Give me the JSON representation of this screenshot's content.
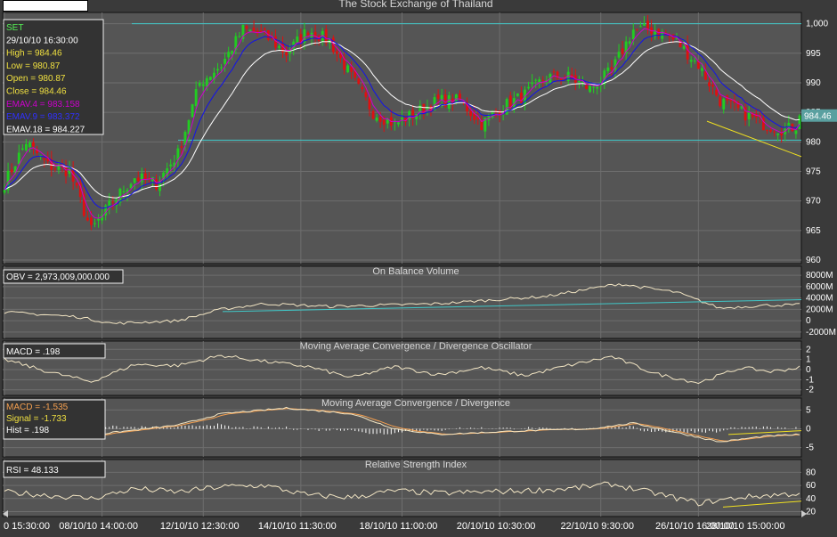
{
  "app": {
    "title": "The Stock Exchange of Thailand"
  },
  "colors": {
    "background": "#3a3a3a",
    "panel": "#555555",
    "grid": "#6e6e6e",
    "bull": "#22cc22",
    "bear": "#dd1111",
    "ema4": "#cc00cc",
    "ema9": "#1111ee",
    "ema18": "#ffffff",
    "trend": "#f0e020",
    "support": "#40c8c8",
    "indicator": "#f3e6c4",
    "signal": "#f5a050",
    "text_axis": "#ffffff",
    "text_title": "#d8d8d8"
  },
  "info_main": {
    "symbol": "SET",
    "datetime": "29/10/10 16:30:00",
    "high": "High  = 984.46",
    "low": "Low   = 980.87",
    "open": "Open  = 980.87",
    "close": "Close = 984.46",
    "ema4": "EMAV.4 = 983.158",
    "ema9": "EMAV.9 = 983.372",
    "ema18": "EMAV.18 = 984.227"
  },
  "info_obv": {
    "label": "OBV = 2,973,009,000.000"
  },
  "info_macd_osc": {
    "label": "MACD = .198"
  },
  "info_macd": {
    "macd": "MACD = -1.535",
    "signal": "Signal = -1.733",
    "hist": "Hist = .198"
  },
  "info_rsi": {
    "label": "RSI = 48.133"
  },
  "price_tag": "984.46",
  "x_labels": [
    "0 15:30:00",
    "08/10/10 14:00:00",
    "12/10/10 12:30:00",
    "14/10/10 11:30:00",
    "18/10/10 11:00:00",
    "20/10/10 10:30:00",
    "22/10/10 9:30:00",
    "26/10/10 16:00:00",
    "28/10/10 15:00:00"
  ],
  "chart_data": [
    {
      "type": "candlestick",
      "title": "The Stock Exchange of Thailand",
      "y_ticks": [
        "1,000",
        "995",
        "990",
        "985",
        "980",
        "975",
        "970",
        "965",
        "960"
      ],
      "ylim": [
        960,
        1001
      ],
      "series": [
        {
          "name": "EMAV.4",
          "last": 983.158
        },
        {
          "name": "EMAV.9",
          "last": 983.372
        },
        {
          "name": "EMAV.18",
          "last": 984.227
        }
      ],
      "anchors": [
        [
          0,
          973
        ],
        [
          6,
          980
        ],
        [
          12,
          976
        ],
        [
          18,
          975
        ],
        [
          24,
          965
        ],
        [
          30,
          970
        ],
        [
          36,
          974
        ],
        [
          42,
          973
        ],
        [
          48,
          978
        ],
        [
          54,
          990
        ],
        [
          60,
          993
        ],
        [
          66,
          999
        ],
        [
          72,
          998
        ],
        [
          78,
          995
        ],
        [
          84,
          999
        ],
        [
          90,
          997
        ],
        [
          96,
          991
        ],
        [
          102,
          985
        ],
        [
          108,
          983
        ],
        [
          114,
          985
        ],
        [
          120,
          987
        ],
        [
          126,
          987
        ],
        [
          132,
          983
        ],
        [
          138,
          986
        ],
        [
          144,
          988
        ],
        [
          150,
          991
        ],
        [
          156,
          991
        ],
        [
          162,
          989
        ],
        [
          168,
          992
        ],
        [
          174,
          999
        ],
        [
          180,
          999
        ],
        [
          186,
          997
        ],
        [
          192,
          993
        ],
        [
          198,
          987
        ],
        [
          204,
          985
        ],
        [
          210,
          983
        ],
        [
          216,
          982
        ],
        [
          220,
          983
        ]
      ],
      "last_close": 984.46,
      "grid": true
    },
    {
      "type": "line",
      "title": "On Balance Volume",
      "y_ticks": [
        "8000M",
        "6000M",
        "4000M",
        "2000M",
        "0",
        "-2000M"
      ],
      "ylim": [
        -2500,
        8500
      ],
      "anchors": [
        [
          0,
          1500
        ],
        [
          20,
          700
        ],
        [
          30,
          -500
        ],
        [
          48,
          0
        ],
        [
          60,
          2000
        ],
        [
          72,
          3000
        ],
        [
          90,
          2500
        ],
        [
          120,
          3000
        ],
        [
          150,
          4300
        ],
        [
          170,
          6500
        ],
        [
          186,
          5000
        ],
        [
          198,
          2200
        ],
        [
          210,
          2700
        ],
        [
          220,
          2800
        ]
      ],
      "last": 2973.009
    },
    {
      "type": "line",
      "title": "Moving Average Convergence / Divergence Oscillator",
      "y_ticks": [
        "2",
        "1",
        "0",
        "-1",
        "-2"
      ],
      "ylim": [
        -2.2,
        2.2
      ],
      "anchors": [
        [
          0,
          1
        ],
        [
          6,
          0.4
        ],
        [
          12,
          -0.2
        ],
        [
          24,
          -1.2
        ],
        [
          36,
          0.5
        ],
        [
          48,
          0.4
        ],
        [
          60,
          1.4
        ],
        [
          72,
          0.8
        ],
        [
          84,
          0.3
        ],
        [
          96,
          -0.8
        ],
        [
          108,
          0.3
        ],
        [
          120,
          -0.5
        ],
        [
          132,
          0.2
        ],
        [
          144,
          -0.6
        ],
        [
          156,
          0.4
        ],
        [
          168,
          1.3
        ],
        [
          180,
          -0.4
        ],
        [
          192,
          -1.3
        ],
        [
          204,
          0.2
        ],
        [
          212,
          -0.2
        ],
        [
          220,
          0.2
        ]
      ],
      "last": 0.198
    },
    {
      "type": "line",
      "title": "Moving Average Convergence / Divergence",
      "y_ticks": [
        "5",
        "0",
        "-5"
      ],
      "ylim": [
        -6.5,
        6.5
      ],
      "series": [
        {
          "name": "MACD",
          "last": -1.535
        },
        {
          "name": "Signal",
          "last": -1.733
        },
        {
          "name": "Hist",
          "last": 0.198
        }
      ],
      "anchors": [
        [
          0,
          -1
        ],
        [
          18,
          -2.5
        ],
        [
          30,
          -1
        ],
        [
          48,
          1
        ],
        [
          60,
          4
        ],
        [
          78,
          5.5
        ],
        [
          96,
          4
        ],
        [
          108,
          0
        ],
        [
          120,
          -1.5
        ],
        [
          144,
          -0.5
        ],
        [
          162,
          0
        ],
        [
          174,
          1.5
        ],
        [
          186,
          -1
        ],
        [
          198,
          -3.5
        ],
        [
          210,
          -2
        ],
        [
          220,
          -1.5
        ]
      ]
    },
    {
      "type": "line",
      "title": "Relative Strength Index",
      "y_ticks": [
        "80",
        "60",
        "40",
        "20"
      ],
      "ylim": [
        18,
        90
      ],
      "anchors": [
        [
          0,
          50
        ],
        [
          12,
          45
        ],
        [
          24,
          40
        ],
        [
          36,
          55
        ],
        [
          48,
          50
        ],
        [
          60,
          58
        ],
        [
          72,
          60
        ],
        [
          84,
          45
        ],
        [
          96,
          42
        ],
        [
          108,
          52
        ],
        [
          120,
          48
        ],
        [
          132,
          50
        ],
        [
          144,
          52
        ],
        [
          156,
          55
        ],
        [
          168,
          62
        ],
        [
          180,
          48
        ],
        [
          192,
          33
        ],
        [
          204,
          42
        ],
        [
          220,
          48
        ]
      ],
      "last": 48.133
    }
  ]
}
